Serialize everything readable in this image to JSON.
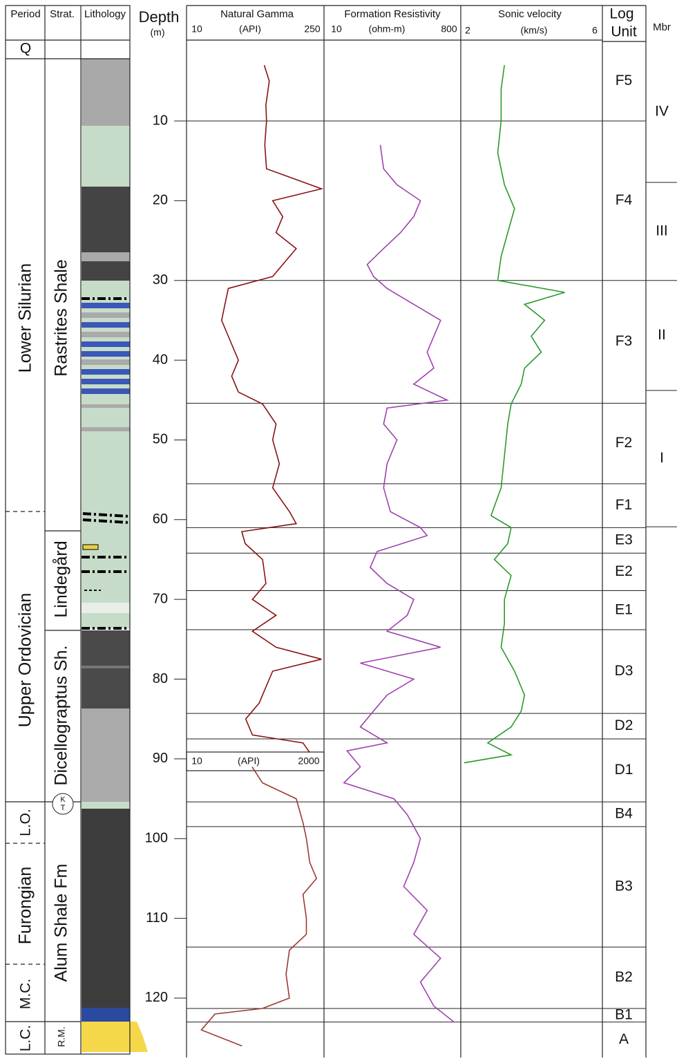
{
  "headers": {
    "period": "Period",
    "strat": "Strat.",
    "lithology": "Lithology",
    "depth": "Depth",
    "depth_unit": "(m)",
    "log_unit_1": "Log",
    "log_unit_2": "Unit",
    "member": "Mbr"
  },
  "depth_ticks": [
    10,
    20,
    30,
    40,
    50,
    60,
    70,
    80,
    90,
    100,
    110,
    120
  ],
  "logs": {
    "gamma": {
      "title": "Natural Gamma",
      "unit": "(API)",
      "color": "#8b1010",
      "xlim": [
        10,
        250
      ],
      "log": false,
      "depth": [
        3,
        5,
        8,
        10,
        13,
        16,
        18.5,
        20,
        22,
        24,
        26,
        28,
        29.5,
        31,
        33,
        35,
        37,
        40,
        42,
        44,
        45.5,
        48,
        50,
        53,
        56,
        59,
        60.5,
        61.5,
        63,
        65,
        68,
        70,
        72,
        74,
        76,
        77.5,
        79,
        81,
        83,
        85,
        87,
        88,
        89.2
      ],
      "values": [
        146,
        155,
        149,
        150,
        147,
        150,
        248,
        161,
        179,
        167,
        203,
        179,
        161,
        82,
        76,
        70,
        82,
        100,
        88,
        100,
        143,
        167,
        161,
        173,
        161,
        191,
        203,
        106,
        112,
        143,
        149,
        125,
        167,
        125,
        167,
        248,
        161,
        149,
        137,
        113,
        125,
        215,
        227
      ]
    },
    "gamma_lower": {
      "unit": "(API)",
      "color": "#9a3a30",
      "xlim": [
        10,
        2000
      ],
      "log": true,
      "depth": [
        91,
        93,
        95,
        98,
        100,
        103,
        105,
        107,
        110,
        112,
        114,
        117,
        120,
        121.3,
        122,
        124,
        126
      ],
      "values": [
        125,
        187,
        708,
        925,
        1057,
        1208,
        1574,
        925,
        1057,
        1057,
        542,
        475,
        542,
        187,
        29,
        17,
        84
      ]
    },
    "resistivity": {
      "title": "Formation Resistivity",
      "unit": "(ohm-m)",
      "color": "#a040b0",
      "xlim": [
        10,
        800
      ],
      "log": true,
      "depth": [
        13,
        16,
        18,
        20,
        22,
        24,
        26,
        28,
        29.5,
        31,
        33,
        35,
        37,
        39,
        41,
        43,
        45,
        46,
        48,
        50,
        53,
        56,
        59,
        61,
        62,
        64,
        66,
        68,
        70,
        72,
        74,
        76,
        78,
        80,
        82,
        84,
        86,
        88,
        89,
        91,
        93,
        95,
        97,
        100,
        103,
        106,
        109,
        112,
        115,
        118,
        121,
        123
      ],
      "values": [
        60,
        67,
        104,
        226,
        181,
        117,
        67,
        39,
        48,
        75,
        181,
        440,
        352,
        282,
        352,
        181,
        548,
        75,
        67,
        104,
        75,
        67,
        84,
        226,
        282,
        54,
        43,
        75,
        181,
        146,
        75,
        440,
        31,
        181,
        75,
        48,
        31,
        75,
        20,
        31,
        18,
        94,
        146,
        226,
        181,
        130,
        282,
        181,
        440,
        226,
        352,
        685
      ]
    },
    "sonic": {
      "title": "Sonic velocity",
      "unit": "(km/s)",
      "color": "#2a9a2a",
      "xlim": [
        2,
        6
      ],
      "log": false,
      "depth": [
        3,
        6,
        10,
        14,
        18,
        21,
        24,
        27,
        30,
        31.5,
        33,
        35,
        37,
        39,
        41,
        43,
        45.5,
        48,
        52,
        56,
        59.5,
        61,
        63,
        65,
        67,
        70,
        73,
        76,
        79,
        82,
        84,
        86,
        88,
        89.5,
        90.5
      ],
      "values": [
        3.2,
        3.1,
        3.1,
        3.0,
        3.2,
        3.5,
        3.3,
        3.1,
        3.0,
        5.0,
        3.8,
        4.4,
        4.0,
        4.3,
        3.8,
        3.7,
        3.4,
        3.3,
        3.2,
        3.1,
        2.8,
        3.4,
        3.3,
        2.9,
        3.4,
        3.2,
        3.2,
        3.1,
        3.5,
        3.8,
        3.7,
        3.4,
        2.7,
        3.4,
        2.0
      ]
    }
  },
  "log_units": [
    {
      "label": "F5",
      "base": 10
    },
    {
      "label": "F4",
      "base": 30
    },
    {
      "label": "F3",
      "base": 45.4
    },
    {
      "label": "F2",
      "base": 55.5
    },
    {
      "label": "F1",
      "base": 61
    },
    {
      "label": "E3",
      "base": 64.2
    },
    {
      "label": "E2",
      "base": 68.9
    },
    {
      "label": "E1",
      "base": 73.8
    },
    {
      "label": "D3",
      "base": 84.3
    },
    {
      "label": "D2",
      "base": 87.5
    },
    {
      "label": "D1",
      "base": 95.4
    },
    {
      "label": "B4",
      "base": 98.5
    },
    {
      "label": "B3",
      "base": 113.6
    },
    {
      "label": "B2",
      "base": 121.3
    },
    {
      "label": "B1",
      "base": 123
    },
    {
      "label": "A"
    }
  ],
  "members": [
    {
      "label": "IV",
      "base": 17.7
    },
    {
      "label": "III",
      "base": 30
    },
    {
      "label": "II",
      "base": 43.8
    },
    {
      "label": "I",
      "base": 60.9
    }
  ],
  "periods": [
    "Q",
    "Lower Silurian",
    "Upper Ordovician",
    "L.O.",
    "Furongian",
    "M.C.",
    "L.C."
  ],
  "strat": [
    "Rastrites Shale",
    "Lindegård",
    "Dicellograptus Sh.",
    "Alum Shale Fm",
    "R.M."
  ],
  "kt": [
    "K",
    "T"
  ]
}
